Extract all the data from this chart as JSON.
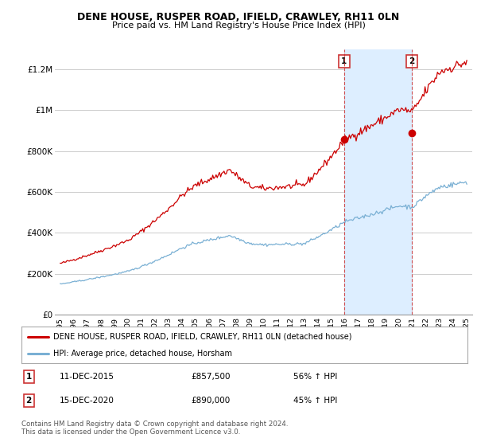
{
  "title": "DENE HOUSE, RUSPER ROAD, IFIELD, CRAWLEY, RH11 0LN",
  "subtitle": "Price paid vs. HM Land Registry's House Price Index (HPI)",
  "legend_label_red": "DENE HOUSE, RUSPER ROAD, IFIELD, CRAWLEY, RH11 0LN (detached house)",
  "legend_label_blue": "HPI: Average price, detached house, Horsham",
  "annotation1_label": "1",
  "annotation1_date": "11-DEC-2015",
  "annotation1_price": "£857,500",
  "annotation1_hpi": "56% ↑ HPI",
  "annotation1_year": 2015.95,
  "annotation1_value": 857500,
  "annotation2_label": "2",
  "annotation2_date": "15-DEC-2020",
  "annotation2_price": "£890,000",
  "annotation2_hpi": "45% ↑ HPI",
  "annotation2_year": 2020.95,
  "annotation2_value": 890000,
  "footer": "Contains HM Land Registry data © Crown copyright and database right 2024.\nThis data is licensed under the Open Government Licence v3.0.",
  "ylim": [
    0,
    1300000
  ],
  "yticks": [
    0,
    200000,
    400000,
    600000,
    800000,
    1000000,
    1200000
  ],
  "ytick_labels": [
    "£0",
    "£200K",
    "£400K",
    "£600K",
    "£800K",
    "£1M",
    "£1.2M"
  ],
  "red_color": "#cc0000",
  "blue_color": "#7ab0d4",
  "shade_color": "#ddeeff",
  "background_color": "#ffffff",
  "grid_color": "#cccccc",
  "xtick_years": [
    "1995",
    "1996",
    "1997",
    "1998",
    "1999",
    "2000",
    "2001",
    "2002",
    "2003",
    "2004",
    "2005",
    "2006",
    "2007",
    "2008",
    "2009",
    "2010",
    "2011",
    "2012",
    "2013",
    "2014",
    "2015",
    "2016",
    "2017",
    "2018",
    "2019",
    "2020",
    "2021",
    "2022",
    "2023",
    "2024",
    "2025"
  ]
}
